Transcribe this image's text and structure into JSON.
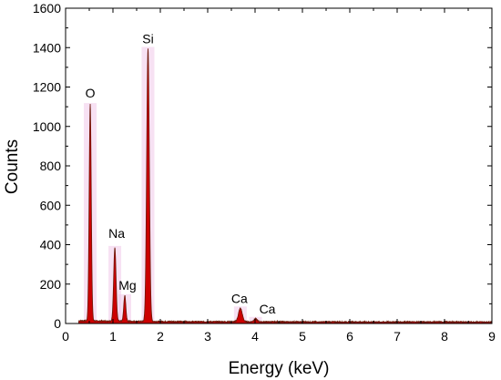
{
  "chart_data": {
    "type": "area",
    "xlabel": "Energy (keV)",
    "ylabel": "Counts",
    "xlim": [
      0,
      9
    ],
    "ylim": [
      0,
      1600
    ],
    "x_ticks": [
      0,
      1,
      2,
      3,
      4,
      5,
      6,
      7,
      8,
      9
    ],
    "y_ticks": [
      0,
      200,
      400,
      600,
      800,
      1000,
      1200,
      1400,
      1600
    ],
    "grid": false,
    "colors": {
      "fill": "#cc0000",
      "outline": "#6b1a0a",
      "halo": "#f0c8ea",
      "axis": "#000000"
    },
    "peaks": [
      {
        "label": "O",
        "energy": 0.52,
        "counts": 1100,
        "width": 0.022
      },
      {
        "label": "Na",
        "energy": 1.04,
        "counts": 375,
        "width": 0.025
      },
      {
        "label": "Mg",
        "energy": 1.25,
        "counts": 130,
        "width": 0.022
      },
      {
        "label": "Si",
        "energy": 1.74,
        "counts": 1385,
        "width": 0.028
      },
      {
        "label": "Ca",
        "energy": 3.69,
        "counts": 68,
        "width": 0.04
      },
      {
        "label": "Ca",
        "energy": 4.01,
        "counts": 15,
        "width": 0.035
      }
    ],
    "background_level": 8
  }
}
